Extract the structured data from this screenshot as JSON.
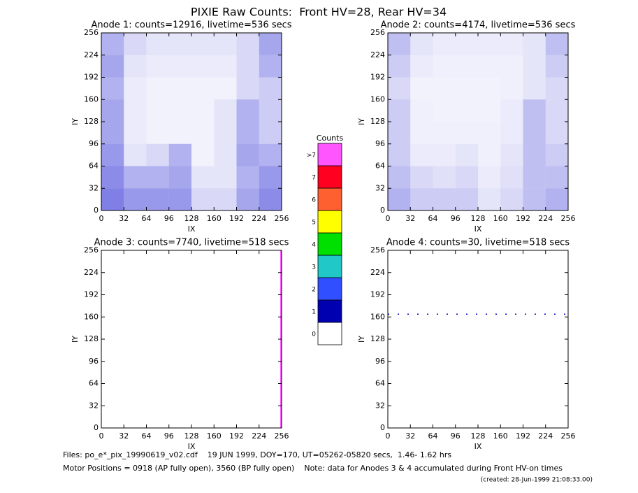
{
  "title": "PIXIE Raw Counts:  Front HV=28, Rear HV=34",
  "chart_data": [
    {
      "type": "heatmap",
      "title": "Anode 1: counts=12916, livetime=536 secs",
      "xlabel": "IX",
      "ylabel": "IY",
      "xlim": [
        0,
        256
      ],
      "ylim": [
        0,
        256
      ],
      "xticks": [
        0,
        32,
        64,
        96,
        128,
        160,
        192,
        224,
        256
      ],
      "yticks": [
        0,
        32,
        64,
        96,
        128,
        160,
        192,
        224,
        256
      ],
      "color": "#0000cc",
      "density": [
        [
          0.5,
          0.4,
          0.4,
          0.4,
          0.15,
          0.15,
          0.35,
          0.45
        ],
        [
          0.45,
          0.3,
          0.3,
          0.35,
          0.1,
          0.1,
          0.3,
          0.4
        ],
        [
          0.4,
          0.1,
          0.15,
          0.3,
          0.05,
          0.1,
          0.35,
          0.3
        ],
        [
          0.35,
          0.08,
          0.05,
          0.05,
          0.05,
          0.1,
          0.3,
          0.2
        ],
        [
          0.35,
          0.08,
          0.05,
          0.05,
          0.05,
          0.1,
          0.3,
          0.2
        ],
        [
          0.3,
          0.08,
          0.05,
          0.05,
          0.05,
          0.05,
          0.15,
          0.2
        ],
        [
          0.35,
          0.1,
          0.08,
          0.08,
          0.08,
          0.08,
          0.15,
          0.3
        ],
        [
          0.3,
          0.15,
          0.1,
          0.1,
          0.1,
          0.1,
          0.15,
          0.35
        ]
      ]
    },
    {
      "type": "heatmap",
      "title": "Anode 2: counts=4174, livetime=536 secs",
      "xlabel": "IX",
      "ylabel": "IY",
      "xlim": [
        0,
        256
      ],
      "ylim": [
        0,
        256
      ],
      "xticks": [
        0,
        32,
        64,
        96,
        128,
        160,
        192,
        224,
        256
      ],
      "yticks": [
        0,
        32,
        64,
        96,
        128,
        160,
        192,
        224,
        256
      ],
      "color": "#0000cc",
      "density": [
        [
          0.3,
          0.2,
          0.2,
          0.2,
          0.1,
          0.15,
          0.25,
          0.3
        ],
        [
          0.25,
          0.15,
          0.12,
          0.15,
          0.08,
          0.12,
          0.25,
          0.25
        ],
        [
          0.2,
          0.08,
          0.08,
          0.1,
          0.06,
          0.1,
          0.25,
          0.2
        ],
        [
          0.2,
          0.06,
          0.06,
          0.06,
          0.06,
          0.08,
          0.25,
          0.15
        ],
        [
          0.2,
          0.06,
          0.05,
          0.05,
          0.05,
          0.08,
          0.25,
          0.15
        ],
        [
          0.15,
          0.05,
          0.05,
          0.05,
          0.05,
          0.06,
          0.1,
          0.15
        ],
        [
          0.2,
          0.08,
          0.06,
          0.06,
          0.06,
          0.06,
          0.1,
          0.2
        ],
        [
          0.25,
          0.1,
          0.08,
          0.08,
          0.08,
          0.08,
          0.1,
          0.25
        ]
      ]
    },
    {
      "type": "heatmap",
      "title": "Anode 3: counts=7740, livetime=518 secs",
      "xlabel": "IX",
      "ylabel": "IY",
      "xlim": [
        0,
        256
      ],
      "ylim": [
        0,
        256
      ],
      "xticks": [
        0,
        32,
        64,
        96,
        128,
        160,
        192,
        224,
        256
      ],
      "yticks": [
        0,
        32,
        64,
        96,
        128,
        160,
        192,
        224,
        256
      ],
      "line": {
        "x": 255,
        "color": "#ff55ff"
      }
    },
    {
      "type": "heatmap",
      "title": "Anode 4: counts=30, livetime=518 secs",
      "xlabel": "IX",
      "ylabel": "IY",
      "xlim": [
        0,
        256
      ],
      "ylim": [
        0,
        256
      ],
      "xticks": [
        0,
        32,
        64,
        96,
        128,
        160,
        192,
        224,
        256
      ],
      "yticks": [
        0,
        32,
        64,
        96,
        128,
        160,
        192,
        224,
        256
      ],
      "line": {
        "y": 164,
        "color": "#0000cc"
      }
    }
  ],
  "colorbar": {
    "title": "Counts",
    "labels": [
      "0",
      "1",
      "2",
      "3",
      "4",
      "5",
      "6",
      "7",
      ">7"
    ],
    "colors": [
      "#ffffff",
      "#0000b0",
      "#3050ff",
      "#20c8c8",
      "#00e000",
      "#ffff00",
      "#ff6030",
      "#ff0020",
      "#ff55ff"
    ]
  },
  "footer": {
    "files": "Files: po_e*_pix_19990619_v02.cdf    19 JUN 1999, DOY=170, UT=05262-05820 secs,  1.46- 1.62 hrs",
    "motor": "Motor Positions = 0918 (AP fully open), 3560 (BP fully open)    Note: data for Anodes 3 & 4 accumulated during Front HV-on times",
    "created": "(created: 28-Jun-1999 21:08:33.00)"
  }
}
